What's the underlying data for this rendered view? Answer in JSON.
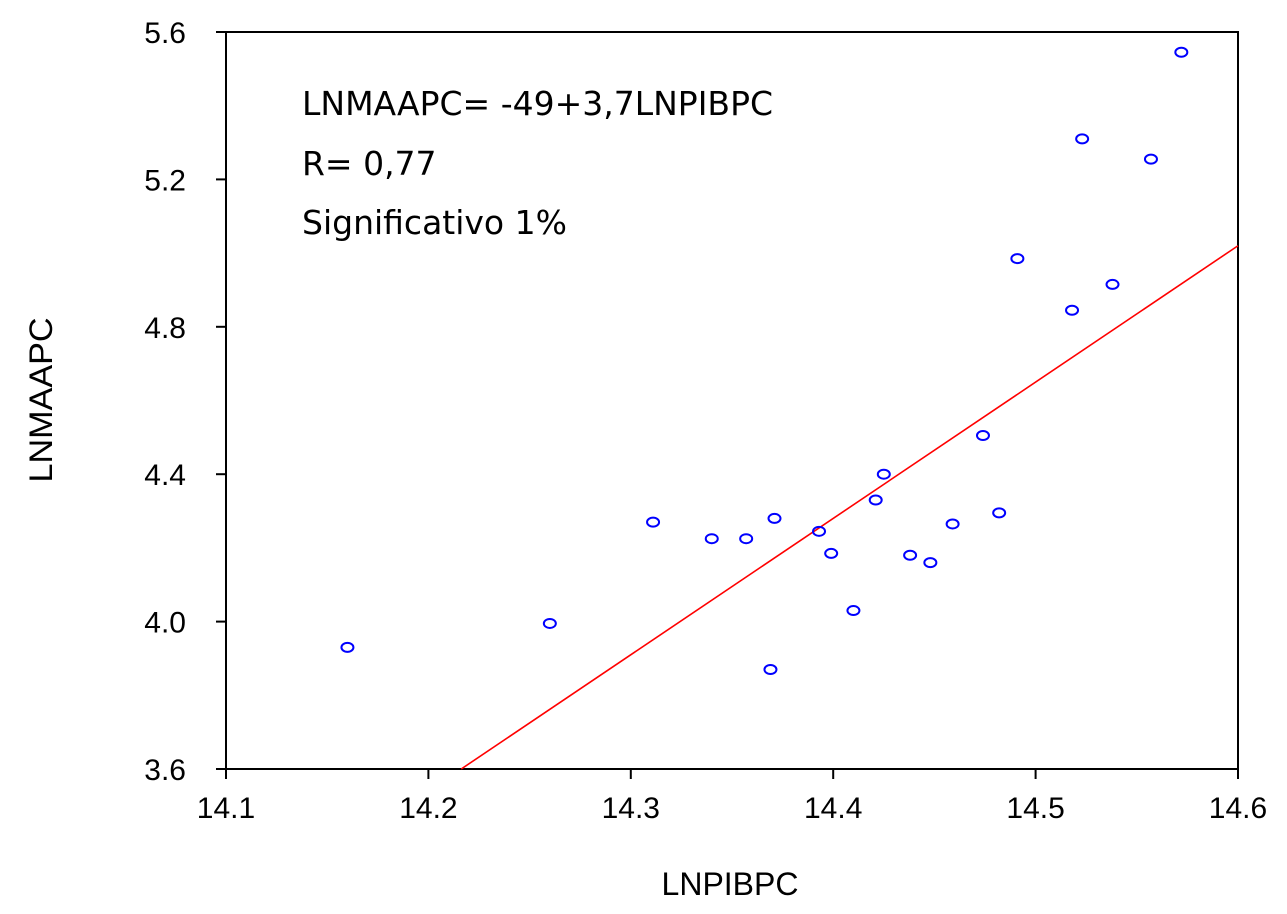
{
  "chart_data": {
    "type": "scatter",
    "title": "",
    "xlabel": "LNPIBPC",
    "ylabel": "LNMAAPC",
    "xlim": [
      14.1,
      14.6
    ],
    "ylim": [
      3.6,
      5.6
    ],
    "x_ticks": [
      "14.1",
      "14.2",
      "14.3",
      "14.4",
      "14.5",
      "14.6"
    ],
    "y_ticks": [
      "3.6",
      "4.0",
      "4.4",
      "4.8",
      "5.2",
      "5.6"
    ],
    "annotations": [
      "LNMAAPC= -49+3,7LNPIBPC",
      "R= 0,77",
      "Significativo 1%"
    ],
    "colors": {
      "points": "#0000ff",
      "fit_line": "#ff0000",
      "axes": "#000000"
    },
    "fit_line": {
      "slope": 3.7,
      "intercept": -49
    },
    "points": [
      {
        "x": 14.16,
        "y": 3.93
      },
      {
        "x": 14.26,
        "y": 3.995
      },
      {
        "x": 14.311,
        "y": 4.27
      },
      {
        "x": 14.34,
        "y": 4.225
      },
      {
        "x": 14.357,
        "y": 4.225
      },
      {
        "x": 14.369,
        "y": 3.87
      },
      {
        "x": 14.371,
        "y": 4.28
      },
      {
        "x": 14.393,
        "y": 4.245
      },
      {
        "x": 14.399,
        "y": 4.185
      },
      {
        "x": 14.41,
        "y": 4.03
      },
      {
        "x": 14.421,
        "y": 4.33
      },
      {
        "x": 14.425,
        "y": 4.4
      },
      {
        "x": 14.438,
        "y": 4.18
      },
      {
        "x": 14.448,
        "y": 4.16
      },
      {
        "x": 14.459,
        "y": 4.265
      },
      {
        "x": 14.474,
        "y": 4.505
      },
      {
        "x": 14.482,
        "y": 4.295
      },
      {
        "x": 14.491,
        "y": 4.985
      },
      {
        "x": 14.518,
        "y": 4.845
      },
      {
        "x": 14.523,
        "y": 5.31
      },
      {
        "x": 14.538,
        "y": 4.915
      },
      {
        "x": 14.557,
        "y": 5.255
      },
      {
        "x": 14.572,
        "y": 5.545
      }
    ]
  }
}
